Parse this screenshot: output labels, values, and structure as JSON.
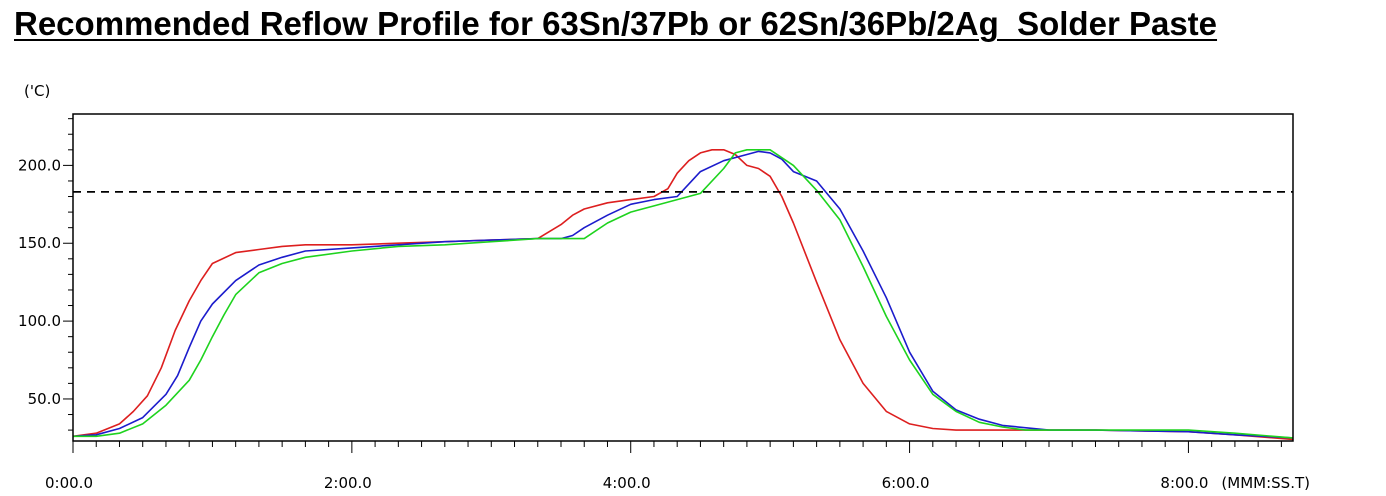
{
  "title": "Recommended Reflow Profile for 63Sn/37Pb or 62Sn/36Pb/2Ag  Solder Paste",
  "chart_data": {
    "type": "line",
    "title": "Recommended Reflow Profile for 63Sn/37Pb or 62Sn/36Pb/2Ag  Solder Paste",
    "ylabel": "('C)",
    "xlabel": "(MMM:SS.T)",
    "xlim": [
      0,
      525
    ],
    "ylim": [
      23,
      233
    ],
    "x_unit": "seconds",
    "x_ticks": [
      {
        "value": 0,
        "label": "0:00.0"
      },
      {
        "value": 120,
        "label": "2:00.0"
      },
      {
        "value": 240,
        "label": "4:00.0"
      },
      {
        "value": 360,
        "label": "6:00.0"
      },
      {
        "value": 480,
        "label": "8:00.0"
      }
    ],
    "y_ticks": [
      {
        "value": 50,
        "label": "50.0"
      },
      {
        "value": 100,
        "label": "100.0"
      },
      {
        "value": 150,
        "label": "150.0"
      },
      {
        "value": 200,
        "label": "200.0"
      }
    ],
    "reference_line": {
      "y": 183,
      "style": "dashed",
      "color": "#000000"
    },
    "grid": false,
    "series": [
      {
        "color": "#dd1f1f",
        "x": [
          0,
          10,
          20,
          26,
          32,
          38,
          44,
          50,
          55,
          60,
          70,
          80,
          90,
          100,
          120,
          140,
          160,
          180,
          200,
          210,
          215,
          220,
          230,
          240,
          250,
          256,
          260,
          265,
          270,
          275,
          280,
          285,
          290,
          295,
          300,
          305,
          310,
          320,
          330,
          340,
          350,
          360,
          370,
          380,
          400,
          440,
          480,
          500,
          525
        ],
        "y": [
          26,
          28,
          34,
          42,
          52,
          70,
          94,
          113,
          126,
          137,
          144,
          146,
          148,
          149,
          149,
          150,
          151,
          152,
          153,
          162,
          168,
          172,
          176,
          178,
          180,
          185,
          195,
          203,
          208,
          210,
          210,
          207,
          200,
          198,
          193,
          180,
          163,
          125,
          88,
          60,
          42,
          34,
          31,
          30,
          30,
          30,
          29,
          27,
          24
        ]
      },
      {
        "color": "#1c1ccc",
        "x": [
          0,
          10,
          20,
          30,
          40,
          45,
          50,
          55,
          60,
          70,
          80,
          90,
          100,
          120,
          140,
          160,
          180,
          200,
          210,
          215,
          220,
          230,
          240,
          250,
          260,
          265,
          270,
          280,
          290,
          295,
          300,
          305,
          310,
          320,
          330,
          340,
          350,
          360,
          370,
          380,
          390,
          400,
          420,
          440,
          480,
          500,
          525
        ],
        "y": [
          26,
          27,
          31,
          38,
          53,
          65,
          83,
          100,
          111,
          126,
          136,
          141,
          145,
          147,
          149,
          151,
          152,
          153,
          153,
          155,
          160,
          168,
          175,
          178,
          180,
          188,
          196,
          203,
          207,
          209,
          208,
          204,
          196,
          190,
          172,
          145,
          115,
          80,
          55,
          43,
          37,
          33,
          30,
          30,
          29,
          27,
          25
        ]
      },
      {
        "color": "#1ed31e",
        "x": [
          0,
          10,
          20,
          30,
          40,
          50,
          55,
          60,
          65,
          70,
          80,
          90,
          100,
          120,
          140,
          160,
          180,
          200,
          210,
          220,
          230,
          240,
          250,
          260,
          270,
          280,
          285,
          290,
          300,
          310,
          320,
          330,
          340,
          350,
          360,
          370,
          380,
          390,
          400,
          410,
          420,
          440,
          480,
          500,
          525
        ],
        "y": [
          26,
          26,
          28,
          34,
          46,
          62,
          75,
          90,
          104,
          117,
          131,
          137,
          141,
          145,
          148,
          149,
          151,
          153,
          153,
          153,
          163,
          170,
          174,
          178,
          182,
          198,
          208,
          210,
          210,
          200,
          184,
          165,
          135,
          103,
          75,
          53,
          42,
          35,
          32,
          30,
          30,
          30,
          30,
          28,
          25
        ]
      }
    ]
  }
}
